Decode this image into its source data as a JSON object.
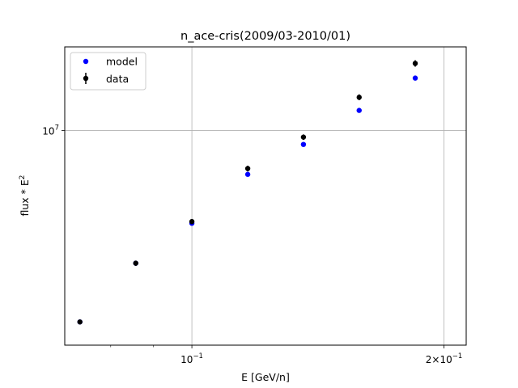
{
  "chart_data": {
    "type": "scatter",
    "title": "n_ace-cris(2009/03-2010/01)",
    "xlabel": "E [GeV/n]",
    "ylabel_main": "flux * E",
    "ylabel_sup": "2",
    "xscale": "log",
    "yscale": "log",
    "xlim": [
      0.0705,
      0.2126
    ],
    "ylim": [
      2680000,
      16700000
    ],
    "grid": "major only",
    "legend_position": "top-left",
    "x_ticks": [
      {
        "value": 0.1,
        "base": "10",
        "exp": "−1",
        "coef": ""
      },
      {
        "value": 0.2,
        "base": "10",
        "exp": "−1",
        "coef": "2×"
      }
    ],
    "x_minor_ticks": [
      0.08,
      0.09,
      0.3
    ],
    "y_ticks": [
      {
        "value": 10000000,
        "base": "10",
        "exp": "7"
      }
    ],
    "series": [
      {
        "name": "model",
        "color": "#0000ff",
        "marker": "circle",
        "x": [
          0.0735,
          0.0857,
          0.1,
          0.1166,
          0.1359,
          0.1584,
          0.1848
        ],
        "y": [
          3090000,
          4430000,
          5660000,
          7640000,
          9180000,
          11310000,
          13790000
        ]
      },
      {
        "name": "data",
        "color": "#000000",
        "marker": "circle",
        "errorbars": true,
        "x": [
          0.0735,
          0.0857,
          0.1,
          0.1166,
          0.1359,
          0.1584,
          0.1848
        ],
        "y": [
          3090000,
          4430000,
          5720000,
          7920000,
          9600000,
          12260000,
          15090000
        ],
        "err": [
          40000,
          70000,
          90000,
          140000,
          160000,
          220000,
          300000
        ]
      }
    ]
  }
}
